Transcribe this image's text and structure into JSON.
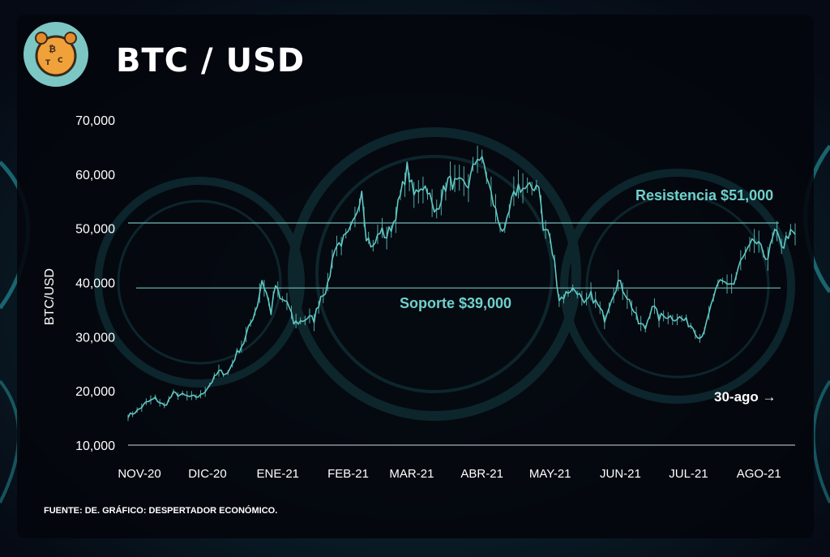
{
  "title": "BTC / USD",
  "source": "FUENTE: DE.  GRÁFICO: DESPERTADOR ECONÓMICO.",
  "note": "30-ago →",
  "colors": {
    "line": "#5fc9c3",
    "label": "#6fd0cb",
    "text": "#ffffff",
    "background": "#05070d"
  },
  "logo": {
    "icon": "bitcoin-alarm-clock-logo",
    "letters": "BTC"
  },
  "chart_data": {
    "type": "line",
    "title": "BTC / USD",
    "xlabel": "",
    "ylabel": "BTC/USD",
    "ylim": [
      10000,
      70000
    ],
    "yticks": [
      10000,
      20000,
      30000,
      40000,
      50000,
      60000,
      70000
    ],
    "ytick_labels": [
      "10,000",
      "20,000",
      "30,000",
      "40,000",
      "50,000",
      "60,000",
      "70,000"
    ],
    "month_labels": [
      "NOV-20",
      "DIC-20",
      "ENE-21",
      "FEB-21",
      "MAR-21",
      "ABR-21",
      "MAY-21",
      "JUN-21",
      "JUL-21",
      "AGO-21"
    ],
    "xlim": [
      "2020-11-10",
      "2021-08-31"
    ],
    "series": [
      {
        "values": [
          [
            "2020-11-10",
            15400
          ],
          [
            "2020-11-14",
            16300
          ],
          [
            "2020-11-18",
            17800
          ],
          [
            "2020-11-22",
            18600
          ],
          [
            "2020-11-26",
            17200
          ],
          [
            "2020-11-30",
            19500
          ],
          [
            "2020-12-04",
            19200
          ],
          [
            "2020-12-08",
            18800
          ],
          [
            "2020-12-12",
            19100
          ],
          [
            "2020-12-16",
            21200
          ],
          [
            "2020-12-20",
            23500
          ],
          [
            "2020-12-24",
            23300
          ],
          [
            "2020-12-28",
            27000
          ],
          [
            "2020-12-31",
            29000
          ],
          [
            "2021-01-03",
            32500
          ],
          [
            "2021-01-06",
            36000
          ],
          [
            "2021-01-08",
            40500
          ],
          [
            "2021-01-10",
            38000
          ],
          [
            "2021-01-12",
            34500
          ],
          [
            "2021-01-14",
            39500
          ],
          [
            "2021-01-16",
            36800
          ],
          [
            "2021-01-19",
            36500
          ],
          [
            "2021-01-22",
            32500
          ],
          [
            "2021-01-25",
            32800
          ],
          [
            "2021-01-28",
            33500
          ],
          [
            "2021-01-31",
            33200
          ],
          [
            "2021-02-03",
            37600
          ],
          [
            "2021-02-06",
            39200
          ],
          [
            "2021-02-09",
            46500
          ],
          [
            "2021-02-12",
            47500
          ],
          [
            "2021-02-15",
            48600
          ],
          [
            "2021-02-18",
            51500
          ],
          [
            "2021-02-21",
            57500
          ],
          [
            "2021-02-23",
            48800
          ],
          [
            "2021-02-26",
            46300
          ],
          [
            "2021-03-01",
            49600
          ],
          [
            "2021-03-04",
            48500
          ],
          [
            "2021-03-07",
            51200
          ],
          [
            "2021-03-10",
            55800
          ],
          [
            "2021-03-13",
            61100
          ],
          [
            "2021-03-16",
            56000
          ],
          [
            "2021-03-19",
            58000
          ],
          [
            "2021-03-22",
            57500
          ],
          [
            "2021-03-25",
            52500
          ],
          [
            "2021-03-28",
            55800
          ],
          [
            "2021-03-31",
            58800
          ],
          [
            "2021-04-03",
            58200
          ],
          [
            "2021-04-06",
            58000
          ],
          [
            "2021-04-09",
            58100
          ],
          [
            "2021-04-13",
            63500
          ],
          [
            "2021-04-16",
            61500
          ],
          [
            "2021-04-19",
            56200
          ],
          [
            "2021-04-22",
            51700
          ],
          [
            "2021-04-25",
            49000
          ],
          [
            "2021-04-28",
            54800
          ],
          [
            "2021-05-01",
            57800
          ],
          [
            "2021-05-04",
            57200
          ],
          [
            "2021-05-07",
            57400
          ],
          [
            "2021-05-10",
            58500
          ],
          [
            "2021-05-12",
            49600
          ],
          [
            "2021-05-14",
            49700
          ],
          [
            "2021-05-17",
            43500
          ],
          [
            "2021-05-19",
            37000
          ],
          [
            "2021-05-21",
            37500
          ],
          [
            "2021-05-24",
            38800
          ],
          [
            "2021-05-27",
            38500
          ],
          [
            "2021-05-30",
            35600
          ],
          [
            "2021-06-02",
            37600
          ],
          [
            "2021-06-05",
            35800
          ],
          [
            "2021-06-08",
            33400
          ],
          [
            "2021-06-11",
            37300
          ],
          [
            "2021-06-14",
            40200
          ],
          [
            "2021-06-17",
            38300
          ],
          [
            "2021-06-20",
            35700
          ],
          [
            "2021-06-23",
            32500
          ],
          [
            "2021-06-26",
            31600
          ],
          [
            "2021-06-29",
            36000
          ],
          [
            "2021-07-02",
            33500
          ],
          [
            "2021-07-05",
            34000
          ],
          [
            "2021-07-08",
            33600
          ],
          [
            "2021-07-11",
            33500
          ],
          [
            "2021-07-14",
            32800
          ],
          [
            "2021-07-17",
            31800
          ],
          [
            "2021-07-20",
            29800
          ],
          [
            "2021-07-23",
            32300
          ],
          [
            "2021-07-26",
            37300
          ],
          [
            "2021-07-29",
            40000
          ],
          [
            "2021-08-01",
            40000
          ],
          [
            "2021-08-04",
            39700
          ],
          [
            "2021-08-07",
            43800
          ],
          [
            "2021-08-10",
            45600
          ],
          [
            "2021-08-13",
            47800
          ],
          [
            "2021-08-16",
            46000
          ],
          [
            "2021-08-19",
            44700
          ],
          [
            "2021-08-22",
            49300
          ],
          [
            "2021-08-24",
            47700
          ],
          [
            "2021-08-26",
            46900
          ],
          [
            "2021-08-28",
            49000
          ],
          [
            "2021-08-31",
            48600
          ]
        ]
      }
    ],
    "reference_lines": [
      {
        "label": "Resistencia $51,000",
        "value": 51000
      },
      {
        "label": "Soporte $39,000",
        "value": 39000
      }
    ],
    "grid": false,
    "legend": "none"
  }
}
